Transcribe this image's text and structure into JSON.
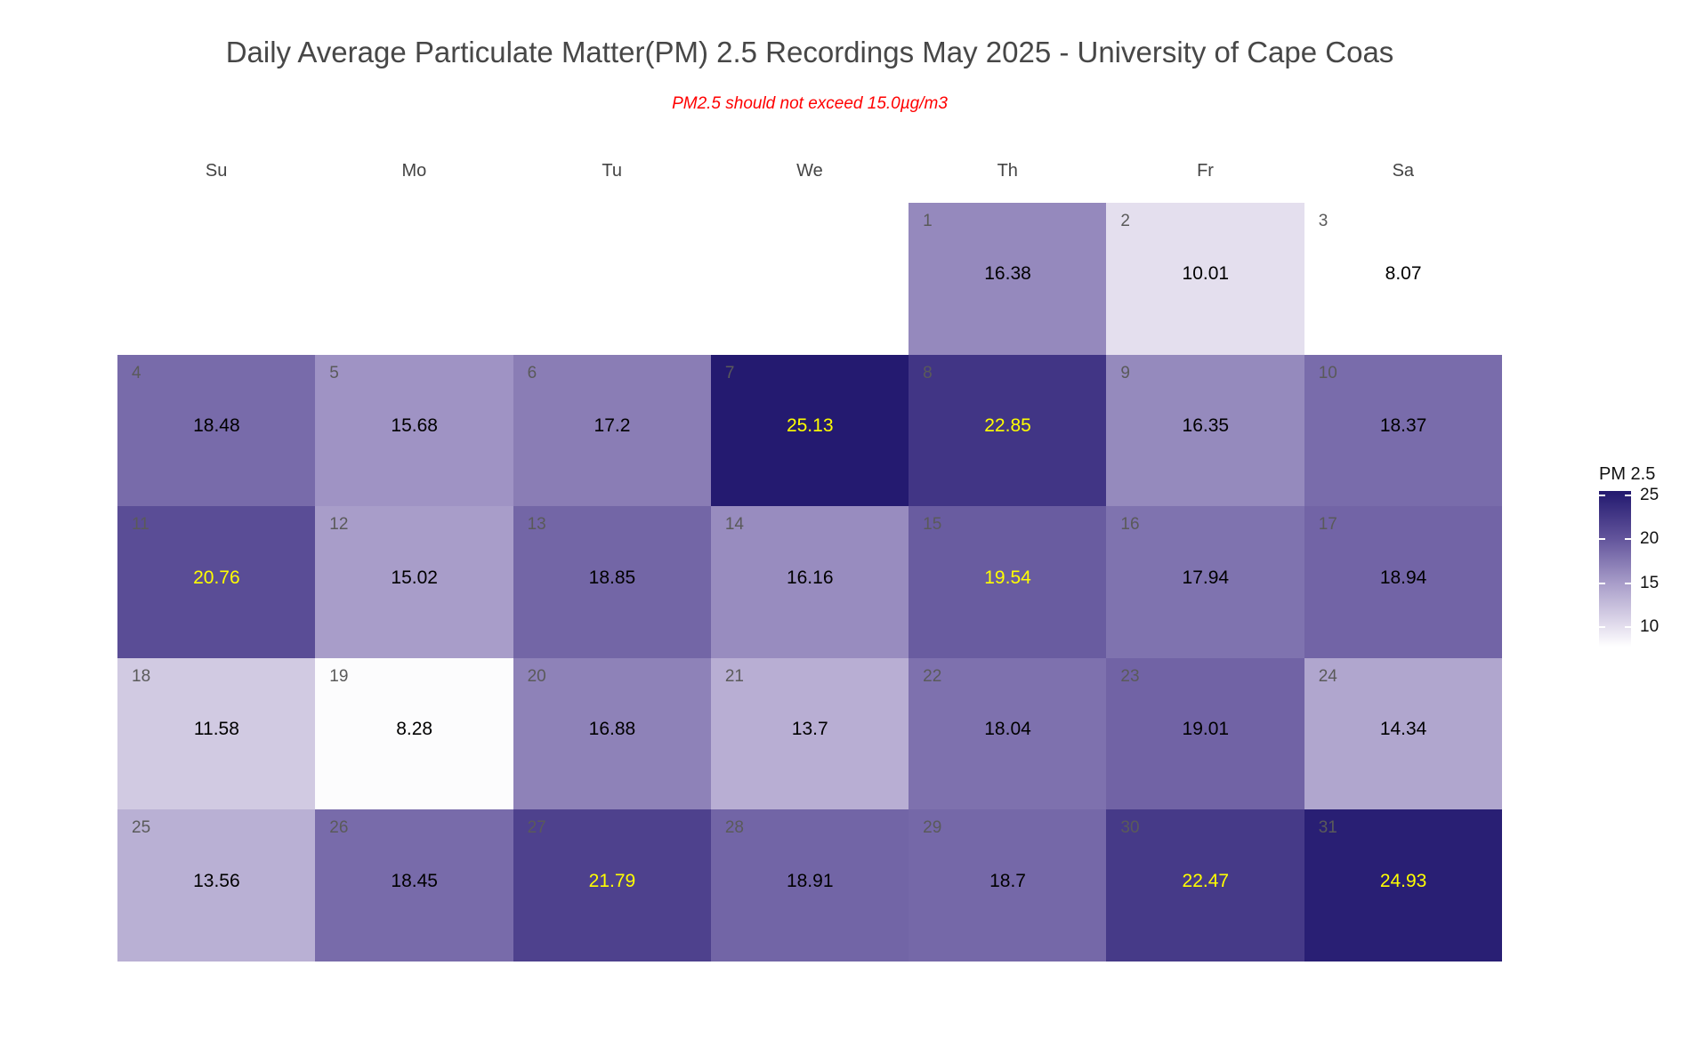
{
  "title": "Daily Average Particulate Matter(PM) 2.5 Recordings May 2025 -  University of Cape Coas",
  "subtitle": "PM2.5 should not exceed 15.0µg/m3",
  "subtitle_color": "#ff0000",
  "weekday_headers": [
    "Su",
    "Mo",
    "Tu",
    "We",
    "Th",
    "Fr",
    "Sa"
  ],
  "legend": {
    "title": "PM 2.5",
    "ticks": [
      "25",
      "20",
      "15",
      "10"
    ],
    "tick_positions_pct": [
      2.9,
      30.9,
      59.4,
      87.4
    ],
    "gradient_stops": [
      {
        "pct": 0,
        "color": "#241a6f"
      },
      {
        "pct": 2.9,
        "color": "#281e73"
      },
      {
        "pct": 30.9,
        "color": "#63559c"
      },
      {
        "pct": 59.4,
        "color": "#a89dc9"
      },
      {
        "pct": 87.4,
        "color": "#e4dfee"
      },
      {
        "pct": 100,
        "color": "#ffffff"
      }
    ]
  },
  "chart_data": {
    "type": "heatmap",
    "subtype": "calendar",
    "month": "May 2025",
    "value_label": "PM 2.5",
    "value_unit": "µg/m3",
    "threshold_note": "PM2.5 should not exceed 15.0µg/m3",
    "value_range": [
      8.07,
      25.13
    ],
    "start_weekday_index": 4,
    "high_value_text_color": "#ffff00",
    "normal_value_text_color": "#000000",
    "day_number_color": "#5a5a5a",
    "days": [
      {
        "day": 1,
        "value": 16.38,
        "label": "16.38",
        "fill": "#9589bd",
        "text_color": "#000000"
      },
      {
        "day": 2,
        "value": 10.01,
        "label": "10.01",
        "fill": "#e4dfee",
        "text_color": "#000000"
      },
      {
        "day": 3,
        "value": 8.07,
        "label": "8.07",
        "fill": "#ffffff",
        "text_color": "#000000"
      },
      {
        "day": 4,
        "value": 18.48,
        "label": "18.48",
        "fill": "#786baa",
        "text_color": "#000000"
      },
      {
        "day": 5,
        "value": 15.68,
        "label": "15.68",
        "fill": "#9f93c4",
        "text_color": "#000000"
      },
      {
        "day": 6,
        "value": 17.2,
        "label": "17.2",
        "fill": "#8a7db5",
        "text_color": "#000000"
      },
      {
        "day": 7,
        "value": 25.13,
        "label": "25.13",
        "fill": "#241a70",
        "text_color": "#ffff00"
      },
      {
        "day": 8,
        "value": 22.85,
        "label": "22.85",
        "fill": "#413585",
        "text_color": "#ffff00"
      },
      {
        "day": 9,
        "value": 16.35,
        "label": "16.35",
        "fill": "#958abd",
        "text_color": "#000000"
      },
      {
        "day": 10,
        "value": 18.37,
        "label": "18.37",
        "fill": "#796cab",
        "text_color": "#000000"
      },
      {
        "day": 11,
        "value": 20.76,
        "label": "20.76",
        "fill": "#5a4d96",
        "text_color": "#ffff00"
      },
      {
        "day": 12,
        "value": 15.02,
        "label": "15.02",
        "fill": "#a89dc9",
        "text_color": "#000000"
      },
      {
        "day": 13,
        "value": 18.85,
        "label": "18.85",
        "fill": "#7366a6",
        "text_color": "#000000"
      },
      {
        "day": 14,
        "value": 16.16,
        "label": "16.16",
        "fill": "#988cbf",
        "text_color": "#000000"
      },
      {
        "day": 15,
        "value": 19.54,
        "label": "19.54",
        "fill": "#695ca0",
        "text_color": "#ffff00"
      },
      {
        "day": 16,
        "value": 17.94,
        "label": "17.94",
        "fill": "#7f73af",
        "text_color": "#000000"
      },
      {
        "day": 17,
        "value": 18.94,
        "label": "18.94",
        "fill": "#7264a6",
        "text_color": "#000000"
      },
      {
        "day": 18,
        "value": 11.58,
        "label": "11.58",
        "fill": "#d1cae2",
        "text_color": "#000000"
      },
      {
        "day": 19,
        "value": 8.28,
        "label": "8.28",
        "fill": "#fcfcfd",
        "text_color": "#000000"
      },
      {
        "day": 20,
        "value": 16.88,
        "label": "16.88",
        "fill": "#8e82b8",
        "text_color": "#000000"
      },
      {
        "day": 21,
        "value": 13.7,
        "label": "13.7",
        "fill": "#b8aed3",
        "text_color": "#000000"
      },
      {
        "day": 22,
        "value": 18.04,
        "label": "18.04",
        "fill": "#7e71ae",
        "text_color": "#000000"
      },
      {
        "day": 23,
        "value": 19.01,
        "label": "19.01",
        "fill": "#7163a5",
        "text_color": "#000000"
      },
      {
        "day": 24,
        "value": 14.34,
        "label": "14.34",
        "fill": "#b0a6ce",
        "text_color": "#000000"
      },
      {
        "day": 25,
        "value": 13.56,
        "label": "13.56",
        "fill": "#b9b0d4",
        "text_color": "#000000"
      },
      {
        "day": 26,
        "value": 18.45,
        "label": "18.45",
        "fill": "#786baa",
        "text_color": "#000000"
      },
      {
        "day": 27,
        "value": 21.79,
        "label": "21.79",
        "fill": "#4e418d",
        "text_color": "#ffff00"
      },
      {
        "day": 28,
        "value": 18.91,
        "label": "18.91",
        "fill": "#7265a6",
        "text_color": "#000000"
      },
      {
        "day": 29,
        "value": 18.7,
        "label": "18.7",
        "fill": "#7568a8",
        "text_color": "#000000"
      },
      {
        "day": 30,
        "value": 22.47,
        "label": "22.47",
        "fill": "#463a88",
        "text_color": "#ffff00"
      },
      {
        "day": 31,
        "value": 24.93,
        "label": "24.93",
        "fill": "#291f74",
        "text_color": "#ffff00"
      }
    ]
  }
}
